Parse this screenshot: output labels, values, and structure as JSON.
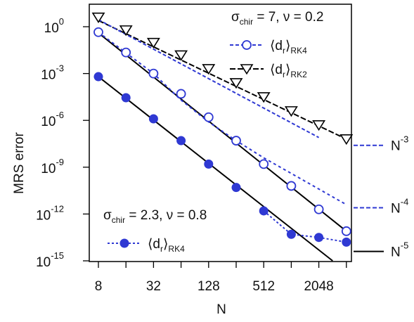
{
  "chart_data": {
    "type": "line",
    "xlabel": "N",
    "ylabel": "MRS error",
    "x_scale": "log2",
    "y_scale": "log10",
    "xlim": [
      7,
      4000
    ],
    "ylim_exponent": [
      -15,
      1
    ],
    "x_ticks": [
      8,
      16,
      32,
      64,
      128,
      256,
      512,
      1024,
      2048,
      4096
    ],
    "x_tick_labels": [
      "8",
      "32",
      "128",
      "512",
      "2048"
    ],
    "x_tick_labels_at": [
      8,
      32,
      128,
      512,
      2048
    ],
    "y_tick_base": "10",
    "y_tick_exponents": [
      "0",
      "-3",
      "-6",
      "-9",
      "-12",
      "-15"
    ],
    "legend_top": {
      "header_sym": "σ",
      "header_sub": "chir",
      "header_rest": " = 7, ν = 0.2",
      "items": [
        {
          "open": "⟨d",
          "sub_r": "r",
          "close": "⟩",
          "method": "RK4",
          "marker": "circle-open"
        },
        {
          "open": "⟨d",
          "sub_r": "r",
          "close": "⟩",
          "method": "RK2",
          "marker": "triangle-down-open"
        }
      ]
    },
    "legend_bottom": {
      "header_sym": "σ",
      "header_sub": "chir",
      "header_rest": " = 2.3, ν = 0.8",
      "items": [
        {
          "open": "⟨d",
          "sub_r": "r",
          "close": "⟩",
          "method": "RK4",
          "marker": "circle-filled"
        }
      ]
    },
    "reference_labels": [
      {
        "base": "N",
        "sup": "-3",
        "y_exp": -7.6,
        "color": "#2f39d3",
        "dash": true
      },
      {
        "base": "N",
        "sup": "-4",
        "y_exp": -11.6,
        "color": "#2f39d3",
        "dash": true
      },
      {
        "base": "N",
        "sup": "-5",
        "y_exp": -14.4,
        "color": "#000000",
        "dash": false
      }
    ],
    "series": [
      {
        "name": "⟨dr⟩RK2 (σchir = 7, ν = 0.2)",
        "marker": "triangle-down-open",
        "color": "#000000",
        "x": [
          8,
          16,
          32,
          64,
          128,
          256,
          512,
          1024,
          2048,
          4096
        ],
        "y_exp": [
          0.6,
          -0.22,
          -1.02,
          -1.82,
          -2.7,
          -3.6,
          -4.5,
          -5.4,
          -6.3,
          -7.2
        ]
      },
      {
        "name": "⟨dr⟩RK4 (σchir = 7, ν = 0.2)",
        "marker": "circle-open",
        "color": "#2f39d3",
        "x": [
          8,
          16,
          32,
          64,
          128,
          256,
          512,
          1024,
          2048,
          4096
        ],
        "y_exp": [
          -0.35,
          -1.65,
          -3.0,
          -4.3,
          -5.8,
          -7.3,
          -8.8,
          -10.2,
          -11.7,
          -13.1
        ]
      },
      {
        "name": "⟨dr⟩RK4 (σchir = 2.3, ν = 0.8)",
        "marker": "circle-filled",
        "color": "#2f39d3",
        "x": [
          8,
          16,
          32,
          64,
          128,
          256,
          512,
          1024,
          2048,
          4096
        ],
        "y_exp": [
          -3.2,
          -4.55,
          -5.9,
          -7.3,
          -8.8,
          -10.3,
          -11.8,
          -13.3,
          -13.5,
          -13.8
        ]
      }
    ],
    "fit_lines": [
      {
        "color": "#000000",
        "dash": "8,3",
        "x": [
          8,
          4096
        ],
        "y_exp": [
          0.4,
          -7.2
        ]
      },
      {
        "color": "#2f39d3",
        "dash": "5,3",
        "x": [
          8,
          2048
        ],
        "y_exp": [
          0.45,
          -7.1
        ]
      },
      {
        "color": "#000000",
        "dash": "",
        "x": [
          8,
          4096
        ],
        "y_exp": [
          -0.4,
          -13.1
        ]
      },
      {
        "color": "#2f39d3",
        "dash": "4,4",
        "x": [
          8,
          32,
          64,
          128,
          256,
          512,
          1024,
          2048,
          4096
        ],
        "y_exp": [
          -0.35,
          -3.0,
          -4.7,
          -6.1,
          -7.3,
          -8.4,
          -9.4,
          -10.4,
          -11.4
        ]
      },
      {
        "color": "#000000",
        "dash": "",
        "x": [
          8,
          2900
        ],
        "y_exp": [
          -3.2,
          -15.0
        ]
      },
      {
        "color": "#2f39d3",
        "dash": "3,3",
        "x": [
          512,
          1024,
          2048,
          4096
        ],
        "y_exp": [
          -11.8,
          -13.3,
          -13.5,
          -13.8
        ]
      }
    ]
  }
}
